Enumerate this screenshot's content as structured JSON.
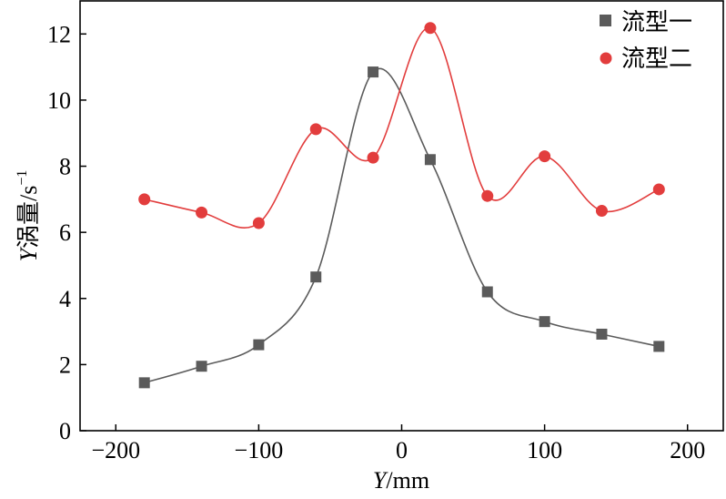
{
  "chart_data": {
    "type": "line",
    "title": "",
    "x": [
      -180,
      -140,
      -100,
      -60,
      -20,
      20,
      60,
      100,
      140,
      180
    ],
    "xlim": [
      -225,
      225
    ],
    "ylim": [
      0,
      13
    ],
    "xticks": [
      -200,
      -100,
      0,
      100,
      200
    ],
    "yticks": [
      0,
      2,
      4,
      6,
      8,
      10,
      12
    ],
    "xtick_labels": [
      "−200",
      "−100",
      "0",
      "100",
      "200"
    ],
    "ytick_labels": [
      "0",
      "2",
      "4",
      "6",
      "8",
      "10",
      "12"
    ],
    "xlabel_italic": "Y",
    "xlabel_rest": "/mm",
    "ylabel_italic": "Y",
    "ylabel_rest": "涡量/s",
    "ylabel_sup": "−1",
    "legend_position": "top-right",
    "series": [
      {
        "name": "流型一",
        "color": "#5b5b5b",
        "marker": "square",
        "values": [
          1.45,
          1.95,
          2.6,
          4.65,
          10.85,
          8.2,
          4.2,
          3.3,
          2.92,
          2.55
        ]
      },
      {
        "name": "流型二",
        "color": "#e23d3d",
        "marker": "circle",
        "values": [
          7.0,
          6.6,
          6.28,
          9.12,
          8.26,
          12.18,
          7.1,
          8.3,
          6.65,
          7.3
        ]
      }
    ]
  }
}
